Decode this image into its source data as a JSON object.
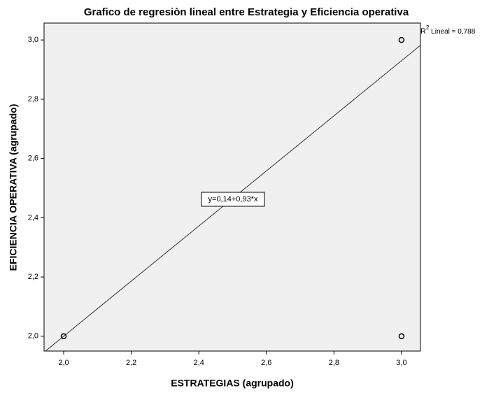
{
  "chart_data": {
    "type": "scatter",
    "title": "Grafico de regresiòn lineal entre Estrategia y Eficiencia operativa",
    "x_label": "ESTRATEGIAS (agrupado)",
    "y_label": "EFICIENCIA OPERATIVA (agrupado)",
    "series": [
      {
        "name": "points",
        "color": "#000000",
        "x": [
          2,
          3,
          3
        ],
        "values": [
          2,
          3,
          2
        ]
      }
    ],
    "fit": {
      "intercept": 0.14,
      "slope": 0.93,
      "label": "y=0,14+0,93*x",
      "color": "#333333"
    },
    "r2": {
      "base": "R",
      "sup": "2",
      "rest": " Lineal = 0,788"
    },
    "xlim": [
      1.942,
      3.056
    ],
    "ylim": [
      1.95,
      3.057
    ],
    "xticks": [
      {
        "value": 2,
        "label": "2,0"
      },
      {
        "value": 2.2,
        "label": "2,2"
      },
      {
        "value": 2.4,
        "label": "2,4"
      },
      {
        "value": 2.6,
        "label": "2,6"
      },
      {
        "value": 2.8,
        "label": "2,8"
      },
      {
        "value": 3,
        "label": "3,0"
      }
    ],
    "yticks": [
      {
        "value": 2,
        "label": "2,0"
      },
      {
        "value": 2.2,
        "label": "2,2"
      },
      {
        "value": 2.4,
        "label": "2,4"
      },
      {
        "value": 2.6,
        "label": "2,6"
      },
      {
        "value": 2.8,
        "label": "2,8"
      },
      {
        "value": 3,
        "label": "3,0"
      }
    ]
  }
}
